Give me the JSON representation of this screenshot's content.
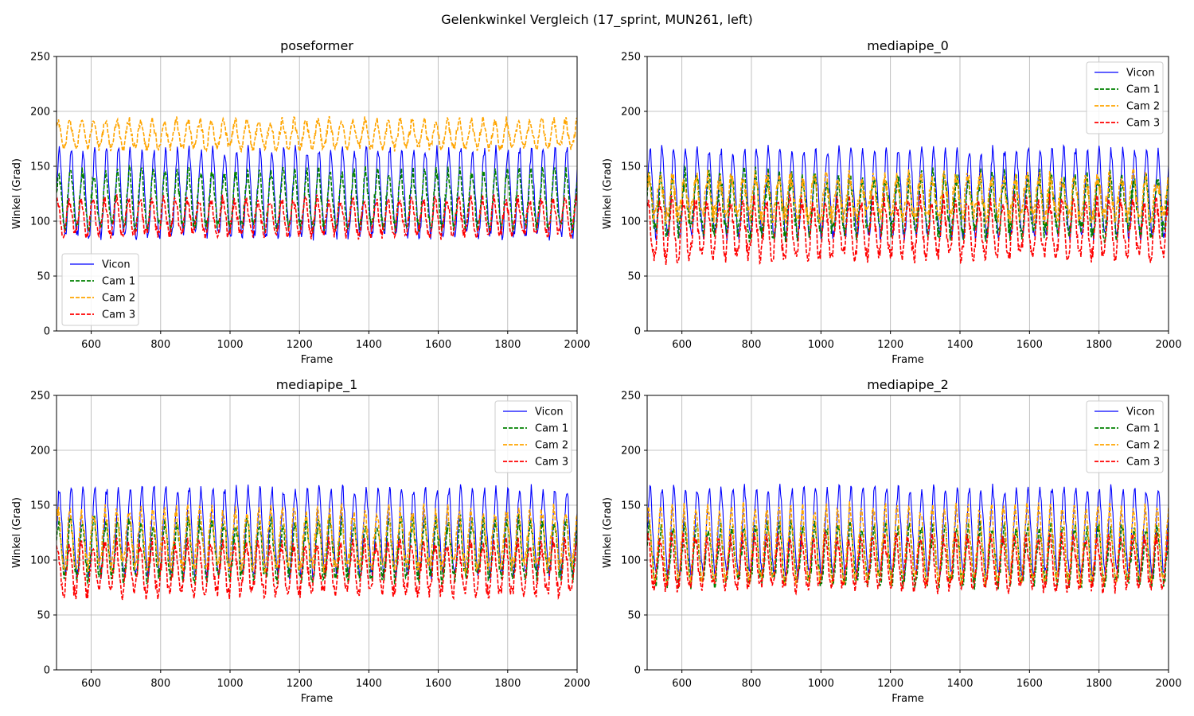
{
  "figure": {
    "suptitle": "Gelenkwinkel Vergleich (17_sprint, MUN261, left)"
  },
  "colors": {
    "vicon": "#0000ff",
    "cam1": "#008000",
    "cam2": "#ffa500",
    "cam3": "#ff0000",
    "grid": "#b0b0b0",
    "axis": "#000000"
  },
  "chart_data": [
    {
      "type": "line",
      "title": "poseformer",
      "xlabel": "Frame",
      "ylabel": "Winkel (Grad)",
      "xlim": [
        500,
        2000
      ],
      "ylim": [
        0,
        250
      ],
      "xticks": [
        600,
        800,
        1000,
        1200,
        1400,
        1600,
        1800,
        2000
      ],
      "yticks": [
        0,
        50,
        100,
        150,
        200,
        250
      ],
      "grid": true,
      "legend_position": "lower-left",
      "series": [
        {
          "name": "Vicon",
          "style": "solid",
          "color_key": "vicon",
          "period_frames": 34,
          "min": 87,
          "max": 165,
          "jitter": 5
        },
        {
          "name": "Cam 1",
          "style": "dashed",
          "color_key": "cam1",
          "period_frames": 34,
          "min": 95,
          "max": 145,
          "jitter": 6
        },
        {
          "name": "Cam 2",
          "style": "dashed",
          "color_key": "cam2",
          "period_frames": 34,
          "min": 167,
          "max": 192,
          "jitter": 4
        },
        {
          "name": "Cam 3",
          "style": "dashed",
          "color_key": "cam3",
          "period_frames": 34,
          "min": 88,
          "max": 120,
          "jitter": 5
        }
      ]
    },
    {
      "type": "line",
      "title": "mediapipe_0",
      "xlabel": "Frame",
      "ylabel": "Winkel (Grad)",
      "xlim": [
        500,
        2000
      ],
      "ylim": [
        0,
        250
      ],
      "xticks": [
        600,
        800,
        1000,
        1200,
        1400,
        1600,
        1800,
        2000
      ],
      "yticks": [
        0,
        50,
        100,
        150,
        200,
        250
      ],
      "grid": true,
      "legend_position": "upper-right",
      "series": [
        {
          "name": "Vicon",
          "style": "solid",
          "color_key": "vicon",
          "period_frames": 34,
          "min": 87,
          "max": 165,
          "jitter": 5
        },
        {
          "name": "Cam 1",
          "style": "dashed",
          "color_key": "cam1",
          "period_frames": 34,
          "min": 90,
          "max": 140,
          "jitter": 10
        },
        {
          "name": "Cam 2",
          "style": "dashed",
          "color_key": "cam2",
          "period_frames": 34,
          "min": 105,
          "max": 140,
          "jitter": 9
        },
        {
          "name": "Cam 3",
          "style": "dashed",
          "color_key": "cam3",
          "period_frames": 34,
          "min": 68,
          "max": 118,
          "jitter": 8
        }
      ]
    },
    {
      "type": "line",
      "title": "mediapipe_1",
      "xlabel": "Frame",
      "ylabel": "Winkel (Grad)",
      "xlim": [
        500,
        2000
      ],
      "ylim": [
        0,
        250
      ],
      "xticks": [
        600,
        800,
        1000,
        1200,
        1400,
        1600,
        1800,
        2000
      ],
      "yticks": [
        0,
        50,
        100,
        150,
        200,
        250
      ],
      "grid": true,
      "legend_position": "upper-right",
      "series": [
        {
          "name": "Vicon",
          "style": "solid",
          "color_key": "vicon",
          "period_frames": 34,
          "min": 87,
          "max": 165,
          "jitter": 5
        },
        {
          "name": "Cam 1",
          "style": "dashed",
          "color_key": "cam1",
          "period_frames": 34,
          "min": 85,
          "max": 135,
          "jitter": 8
        },
        {
          "name": "Cam 2",
          "style": "dashed",
          "color_key": "cam2",
          "period_frames": 34,
          "min": 95,
          "max": 145,
          "jitter": 7
        },
        {
          "name": "Cam 3",
          "style": "dashed",
          "color_key": "cam3",
          "period_frames": 34,
          "min": 70,
          "max": 115,
          "jitter": 7
        }
      ]
    },
    {
      "type": "line",
      "title": "mediapipe_2",
      "xlabel": "Frame",
      "ylabel": "Winkel (Grad)",
      "xlim": [
        500,
        2000
      ],
      "ylim": [
        0,
        250
      ],
      "xticks": [
        600,
        800,
        1000,
        1200,
        1400,
        1600,
        1800,
        2000
      ],
      "yticks": [
        0,
        50,
        100,
        150,
        200,
        250
      ],
      "grid": true,
      "legend_position": "upper-right",
      "series": [
        {
          "name": "Vicon",
          "style": "solid",
          "color_key": "vicon",
          "period_frames": 34,
          "min": 87,
          "max": 165,
          "jitter": 5
        },
        {
          "name": "Cam 1",
          "style": "dashed",
          "color_key": "cam1",
          "period_frames": 34,
          "min": 80,
          "max": 130,
          "jitter": 7
        },
        {
          "name": "Cam 2",
          "style": "dashed",
          "color_key": "cam2",
          "period_frames": 34,
          "min": 82,
          "max": 148,
          "jitter": 6
        },
        {
          "name": "Cam 3",
          "style": "dashed",
          "color_key": "cam3",
          "period_frames": 34,
          "min": 75,
          "max": 120,
          "jitter": 6
        }
      ]
    }
  ]
}
